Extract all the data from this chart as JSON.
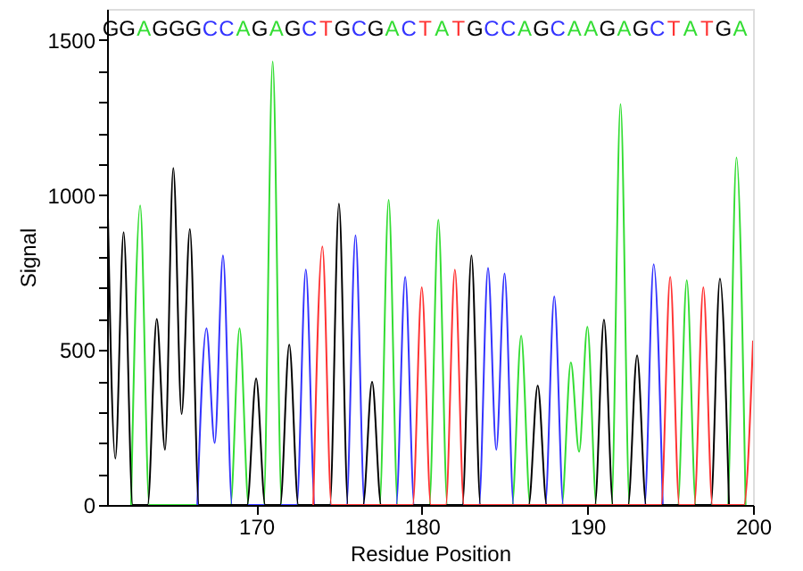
{
  "chart_data": {
    "type": "line",
    "xlabel": "Residue Position",
    "ylabel": "Signal",
    "xlim": [
      161,
      200
    ],
    "xticks": [
      170,
      180,
      190,
      200
    ],
    "ylim": [
      0,
      1600
    ],
    "yticks": [
      0,
      {
        "value": 100,
        "label": null
      },
      {
        "value": 200,
        "label": null
      },
      {
        "value": 300,
        "label": null
      },
      {
        "value": 400,
        "label": null
      },
      500,
      {
        "value": 600,
        "label": null
      },
      {
        "value": 700,
        "label": null
      },
      {
        "value": 800,
        "label": null
      },
      {
        "value": 900,
        "label": null
      },
      1000,
      {
        "value": 1100,
        "label": null
      },
      {
        "value": 1200,
        "label": null
      },
      {
        "value": 1300,
        "label": null
      },
      {
        "value": 1400,
        "label": null
      },
      1500
    ],
    "grid": false,
    "marker": "none",
    "line_style": "solid",
    "series": [
      {
        "color": "#33dd33",
        "x": [
          162.45,
          163,
          163.55,
          168.45,
          169,
          169.55,
          170.45,
          171,
          171.55,
          177.45,
          178,
          178.55,
          180.45,
          181,
          181.55,
          185.45,
          186,
          186.55,
          188.45,
          189,
          189.5,
          190,
          190.55,
          191.45,
          192,
          192.55,
          195.45,
          196,
          196.55,
          198.45,
          199,
          199.55
        ],
        "values": [
          0,
          966,
          0,
          0,
          570,
          0,
          0,
          1430,
          0,
          0,
          984,
          0,
          0,
          920,
          0,
          0,
          546,
          0,
          0,
          460,
          172,
          575,
          0,
          0,
          1293,
          0,
          0,
          725,
          0,
          0,
          1121,
          0
        ]
      },
      {
        "color": "#3333ff",
        "x": [
          166.45,
          167,
          167.5,
          168,
          168.55,
          172.45,
          173,
          173.55,
          175.45,
          176,
          176.55,
          178.45,
          179,
          179.55,
          183.45,
          184,
          184.5,
          185,
          185.55,
          187.45,
          188,
          188.55,
          193.45,
          194,
          194.55
        ],
        "values": [
          0,
          570,
          200,
          805,
          0,
          0,
          760,
          0,
          0,
          870,
          0,
          0,
          736,
          0,
          0,
          765,
          178,
          747,
          0,
          0,
          673,
          0,
          0,
          776,
          0
        ]
      },
      {
        "color": "#000000",
        "x": [
          161,
          161.5,
          162,
          162.55,
          163.45,
          164,
          164.5,
          165,
          165.5,
          166,
          166.55,
          169.45,
          170,
          170.55,
          171.45,
          172,
          172.55,
          174.45,
          175,
          175.55,
          176.45,
          177,
          177.55,
          182.45,
          183,
          183.55,
          186.45,
          187,
          187.55,
          190.45,
          191,
          191.55,
          192.45,
          193,
          193.55,
          197.45,
          198,
          198.55
        ],
        "values": [
          1080,
          150,
          880,
          0,
          0,
          600,
          178,
          1087,
          293,
          890,
          0,
          0,
          408,
          0,
          0,
          517,
          0,
          0,
          972,
          0,
          0,
          397,
          0,
          0,
          805,
          0,
          0,
          385,
          0,
          0,
          598,
          0,
          0,
          483,
          0,
          0,
          730,
          0
        ]
      },
      {
        "color": "#ff3333",
        "x": [
          173.45,
          174,
          174.55,
          179.45,
          180,
          180.55,
          181.45,
          182,
          182.55,
          194.45,
          195,
          195.55,
          196.45,
          197,
          197.55,
          199.45,
          200
        ],
        "values": [
          0,
          834,
          0,
          0,
          702,
          0,
          0,
          759,
          0,
          0,
          736,
          0,
          0,
          702,
          0,
          0,
          530
        ]
      }
    ],
    "annotations": [
      "G",
      "G",
      "A",
      "G",
      "G",
      "G",
      "C",
      "C",
      "A",
      "G",
      "A",
      "G",
      "C",
      "T",
      "G",
      "C",
      "G",
      "A",
      "C",
      "T",
      "A",
      "T",
      "G",
      "C",
      "C",
      "A",
      "G",
      "C",
      "A",
      "A",
      "G",
      "A",
      "G",
      "C",
      "T",
      "A",
      "T",
      "G",
      "A"
    ]
  }
}
